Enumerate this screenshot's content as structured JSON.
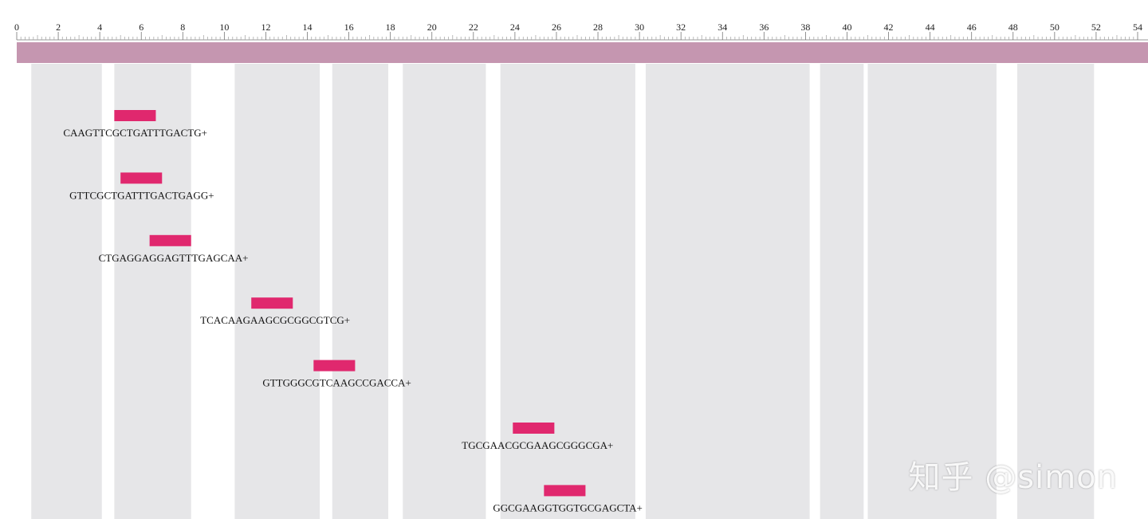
{
  "chart_data": {
    "type": "sequence-primer-map",
    "axis": {
      "min": 0,
      "max": 54,
      "major_step": 2,
      "minor_step": 0.2,
      "tick_labels": [
        "0",
        "2",
        "4",
        "6",
        "8",
        "10",
        "12",
        "14",
        "16",
        "18",
        "20",
        "22",
        "24",
        "26",
        "28",
        "30",
        "32",
        "34",
        "36",
        "38",
        "40",
        "42",
        "44",
        "46",
        "48",
        "50",
        "52",
        "54"
      ]
    },
    "sequence_bar_color": "#c596b0",
    "exon_color": "#e6e6e8",
    "primer_color": "#e0286e",
    "regions": [
      {
        "start": 0.7,
        "end": 4.1
      },
      {
        "start": 4.7,
        "end": 8.4
      },
      {
        "start": 10.5,
        "end": 14.6
      },
      {
        "start": 15.2,
        "end": 17.9
      },
      {
        "start": 18.6,
        "end": 22.6
      },
      {
        "start": 23.3,
        "end": 29.8
      },
      {
        "start": 30.3,
        "end": 38.2
      },
      {
        "start": 38.7,
        "end": 40.8
      },
      {
        "start": 41.0,
        "end": 47.2
      },
      {
        "start": 48.2,
        "end": 51.9
      }
    ],
    "primers": [
      {
        "sequence": "CAAGTTCGCTGATTTGACTG+",
        "start": 4.7,
        "end": 6.7
      },
      {
        "sequence": "GTTCGCTGATTTGACTGAGG+",
        "start": 5.0,
        "end": 7.0
      },
      {
        "sequence": "CTGAGGAGGAGTTTGAGCAA+",
        "start": 6.4,
        "end": 8.4
      },
      {
        "sequence": "TCACAAGAAGCGCGGCGTCG+",
        "start": 11.3,
        "end": 13.3
      },
      {
        "sequence": "GTTGGGCGTCAAGCCGACCA+",
        "start": 14.3,
        "end": 16.3
      },
      {
        "sequence": "TGCGAACGCGAAGCGGGCGA+",
        "start": 23.9,
        "end": 25.9
      },
      {
        "sequence": "GGCGAAGGTGGTGCGAGCTA+",
        "start": 25.4,
        "end": 27.4
      }
    ]
  },
  "watermark": "知乎 @simon"
}
